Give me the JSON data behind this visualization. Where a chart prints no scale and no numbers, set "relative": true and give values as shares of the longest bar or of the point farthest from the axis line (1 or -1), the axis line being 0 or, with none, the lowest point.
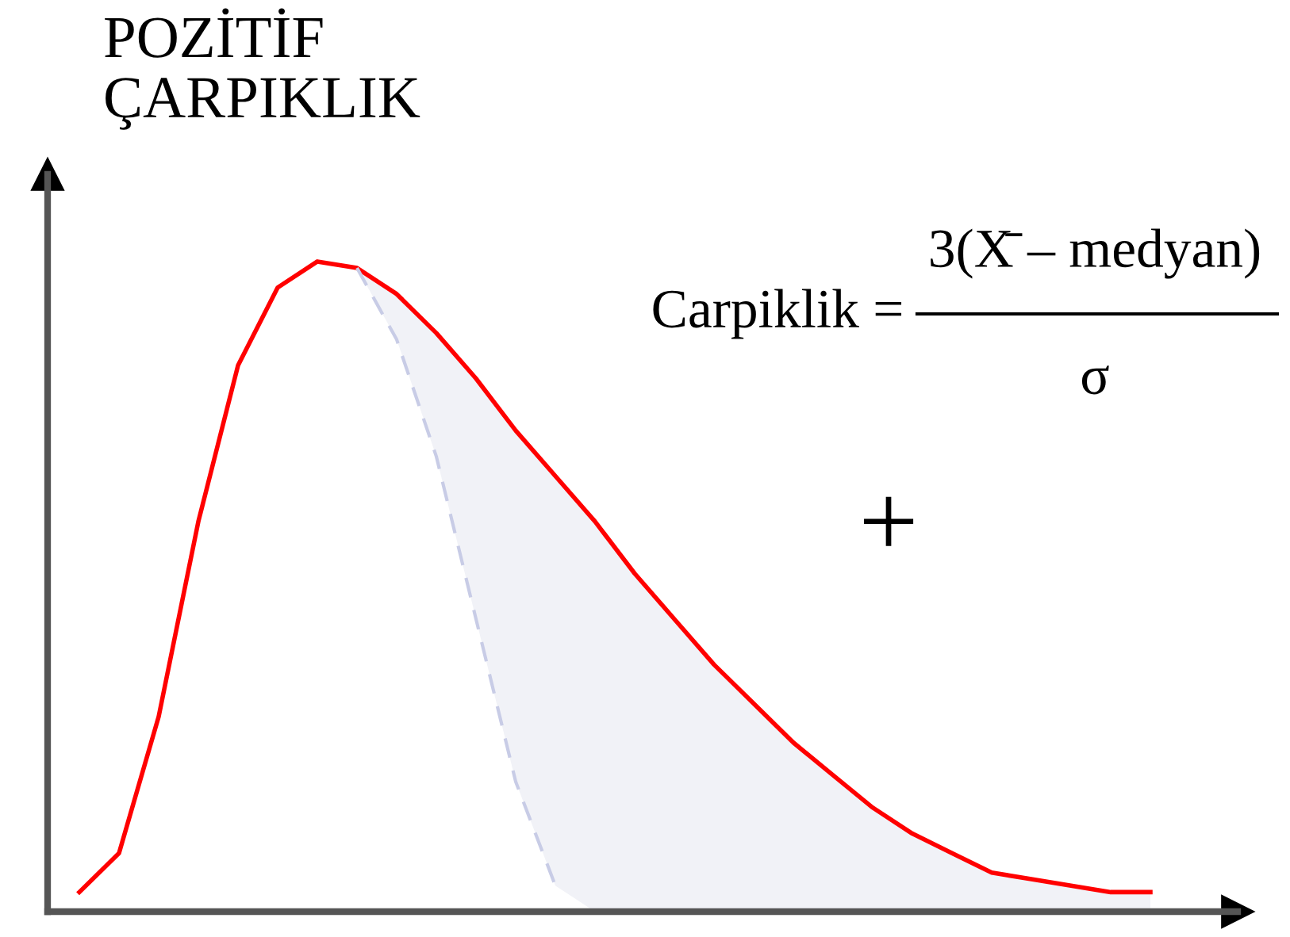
{
  "chart_data": {
    "type": "line",
    "title": "POZİTİF\nÇARPIKLIK",
    "relative": true,
    "categories": [
      null,
      null,
      null,
      null,
      null,
      null,
      null,
      null,
      null,
      null,
      null,
      null,
      null,
      null,
      null,
      null,
      null,
      null,
      null,
      null,
      null,
      null,
      null,
      null,
      null,
      null,
      null,
      null
    ],
    "series": [
      {
        "color": "#ff0000",
        "line_style": "solid",
        "values": [
          0.03,
          0.09,
          0.3,
          0.6,
          0.84,
          0.96,
          1.0,
          0.99,
          0.95,
          0.89,
          0.82,
          0.74,
          0.67,
          0.6,
          0.52,
          0.45,
          0.38,
          0.32,
          0.26,
          0.21,
          0.16,
          0.12,
          0.09,
          0.06,
          0.05,
          0.04,
          0.03,
          0.03
        ],
        "lower": [
          null,
          null,
          null,
          null,
          null,
          null,
          null,
          0.99,
          0.88,
          0.7,
          0.45,
          0.2,
          0.04,
          0,
          0,
          0,
          0,
          0,
          0,
          0,
          0,
          0,
          0,
          0,
          0,
          0,
          0,
          0
        ],
        "upper": [
          null,
          null,
          null,
          null,
          null,
          null,
          null,
          0.99,
          0.95,
          0.89,
          0.82,
          0.74,
          0.67,
          0.6,
          0.52,
          0.45,
          0.38,
          0.32,
          0.26,
          0.21,
          0.16,
          0.12,
          0.09,
          0.06,
          0.05,
          0.04,
          0.03,
          0.03
        ]
      },
      {
        "color": "#c8cce6",
        "line_style": "dashed",
        "values": [
          null,
          null,
          null,
          null,
          null,
          null,
          null,
          0.99,
          0.88,
          0.7,
          0.45,
          0.2,
          0.04,
          null,
          null,
          null,
          null,
          null,
          null,
          null,
          null,
          null,
          null,
          null,
          null,
          null,
          null,
          null
        ]
      }
    ],
    "annotations": [
      "Carpiklik =",
      "3(X̄ – medyan)",
      "σ",
      "+"
    ],
    "marker": "none"
  }
}
